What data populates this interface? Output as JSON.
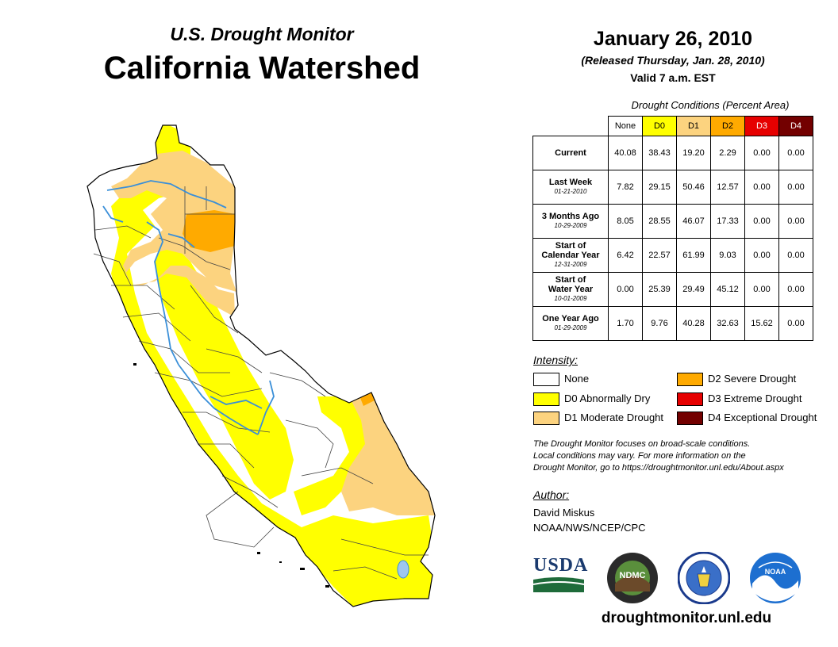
{
  "header": {
    "subtitle": "U.S. Drought Monitor",
    "title": "California Watershed",
    "date": "January 26, 2010",
    "released": "(Released Thursday, Jan. 28, 2010)",
    "valid": "Valid 7 a.m. EST"
  },
  "table": {
    "title": "Drought Conditions (Percent Area)",
    "columns": [
      "None",
      "D0",
      "D1",
      "D2",
      "D3",
      "D4"
    ],
    "column_colors": [
      "#ffffff",
      "#ffff00",
      "#fcd37f",
      "#ffaa00",
      "#e60000",
      "#730000"
    ],
    "rows": [
      {
        "label": "Current",
        "label2": "",
        "date": "",
        "values": [
          "40.08",
          "38.43",
          "19.20",
          "2.29",
          "0.00",
          "0.00"
        ]
      },
      {
        "label": "Last Week",
        "label2": "",
        "date": "01-21-2010",
        "values": [
          "7.82",
          "29.15",
          "50.46",
          "12.57",
          "0.00",
          "0.00"
        ]
      },
      {
        "label": "3 Months Ago",
        "label2": "",
        "date": "10-29-2009",
        "values": [
          "8.05",
          "28.55",
          "46.07",
          "17.33",
          "0.00",
          "0.00"
        ]
      },
      {
        "label": "Start of",
        "label2": "Calendar Year",
        "date": "12-31-2009",
        "values": [
          "6.42",
          "22.57",
          "61.99",
          "9.03",
          "0.00",
          "0.00"
        ]
      },
      {
        "label": "Start of",
        "label2": "Water Year",
        "date": "10-01-2009",
        "values": [
          "0.00",
          "25.39",
          "29.49",
          "45.12",
          "0.00",
          "0.00"
        ]
      },
      {
        "label": "One Year Ago",
        "label2": "",
        "date": "01-29-2009",
        "values": [
          "1.70",
          "9.76",
          "40.28",
          "32.63",
          "15.62",
          "0.00"
        ]
      }
    ]
  },
  "legend": {
    "title": "Intensity:",
    "items": [
      {
        "label": "None",
        "color": "#ffffff"
      },
      {
        "label": "D0 Abnormally Dry",
        "color": "#ffff00"
      },
      {
        "label": "D1 Moderate Drought",
        "color": "#fcd37f"
      },
      {
        "label": "D2 Severe Drought",
        "color": "#ffaa00"
      },
      {
        "label": "D3 Extreme Drought",
        "color": "#e60000"
      },
      {
        "label": "D4 Exceptional Drought",
        "color": "#730000"
      }
    ]
  },
  "note": {
    "line1": "The Drought Monitor focuses on broad-scale conditions.",
    "line2": "Local conditions may vary. For more information on the",
    "line3": "Drought Monitor, go to https://droughtmonitor.unl.edu/About.aspx"
  },
  "author": {
    "heading": "Author:",
    "name": "David Miskus",
    "org": "NOAA/NWS/NCEP/CPC"
  },
  "logos": {
    "usda": "USDA",
    "ndmc": "NDMC",
    "noaa": "NOAA"
  },
  "footer_url": "droughtmonitor.unl.edu"
}
